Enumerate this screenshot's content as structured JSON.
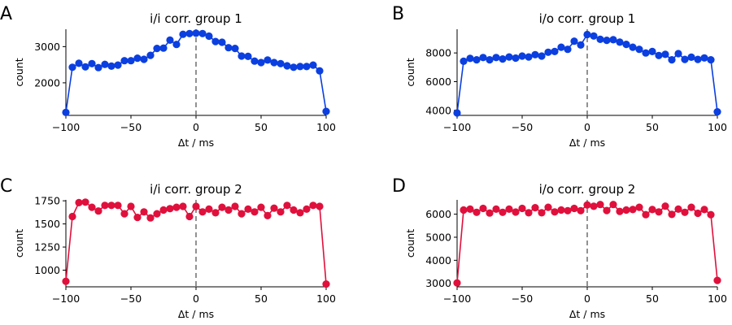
{
  "chart_data": [
    {
      "type": "line",
      "panel_letter": "A",
      "title": "i/i corr. group 1",
      "xlabel": "Δt / ms",
      "ylabel": "count",
      "color": "#0b3fe0",
      "xlim": [
        -100,
        100
      ],
      "ylim": [
        1100,
        3480
      ],
      "xticks": [
        -100,
        -50,
        0,
        50,
        100
      ],
      "yticks": [
        2000,
        3000
      ],
      "x": [
        -100,
        -95,
        -90,
        -85,
        -80,
        -75,
        -70,
        -65,
        -60,
        -55,
        -50,
        -45,
        -40,
        -35,
        -30,
        -25,
        -20,
        -15,
        -10,
        -5,
        0,
        5,
        10,
        15,
        20,
        25,
        30,
        35,
        40,
        45,
        50,
        55,
        60,
        65,
        70,
        75,
        80,
        85,
        90,
        95,
        100
      ],
      "values": [
        1180,
        2430,
        2540,
        2440,
        2530,
        2420,
        2510,
        2460,
        2490,
        2610,
        2610,
        2680,
        2650,
        2760,
        2950,
        2960,
        3180,
        3060,
        3340,
        3360,
        3370,
        3360,
        3290,
        3140,
        3120,
        2970,
        2950,
        2740,
        2730,
        2600,
        2560,
        2630,
        2560,
        2530,
        2470,
        2430,
        2450,
        2450,
        2490,
        2330,
        1210
      ]
    },
    {
      "type": "line",
      "panel_letter": "B",
      "title": "i/o corr. group 1",
      "xlabel": "Δt / ms",
      "ylabel": "count",
      "color": "#0b3fe0",
      "xlim": [
        -100,
        100
      ],
      "ylim": [
        3650,
        9650
      ],
      "xticks": [
        -100,
        -50,
        0,
        50,
        100
      ],
      "yticks": [
        4000,
        6000,
        8000
      ],
      "x": [
        -100,
        -95,
        -90,
        -85,
        -80,
        -75,
        -70,
        -65,
        -60,
        -55,
        -50,
        -45,
        -40,
        -35,
        -30,
        -25,
        -20,
        -15,
        -10,
        -5,
        0,
        5,
        10,
        15,
        20,
        25,
        30,
        35,
        40,
        45,
        50,
        55,
        60,
        65,
        70,
        75,
        80,
        85,
        90,
        95,
        100
      ],
      "values": [
        3820,
        7420,
        7620,
        7520,
        7680,
        7520,
        7680,
        7580,
        7720,
        7640,
        7780,
        7720,
        7880,
        7780,
        8050,
        8100,
        8400,
        8250,
        8820,
        8550,
        9280,
        9180,
        8950,
        8880,
        8920,
        8750,
        8600,
        8400,
        8250,
        8000,
        8100,
        7820,
        7900,
        7520,
        7950,
        7550,
        7700,
        7550,
        7650,
        7520,
        3900
      ]
    },
    {
      "type": "line",
      "panel_letter": "C",
      "title": "i/i corr. group 2",
      "xlabel": "Δt / ms",
      "ylabel": "count",
      "color": "#e0103c",
      "xlim": [
        -100,
        100
      ],
      "ylim": [
        820,
        1760
      ],
      "xticks": [
        -100,
        -50,
        0,
        50,
        100
      ],
      "yticks": [
        1000,
        1250,
        1500,
        1750
      ],
      "x": [
        -100,
        -95,
        -90,
        -85,
        -80,
        -75,
        -70,
        -65,
        -60,
        -55,
        -50,
        -45,
        -40,
        -35,
        -30,
        -25,
        -20,
        -15,
        -10,
        -5,
        0,
        5,
        10,
        15,
        20,
        25,
        30,
        35,
        40,
        45,
        50,
        55,
        60,
        65,
        70,
        75,
        80,
        85,
        90,
        95,
        100
      ],
      "values": [
        880,
        1580,
        1730,
        1735,
        1680,
        1640,
        1700,
        1700,
        1700,
        1610,
        1690,
        1570,
        1630,
        1565,
        1610,
        1650,
        1665,
        1680,
        1690,
        1580,
        1690,
        1630,
        1660,
        1620,
        1680,
        1650,
        1690,
        1610,
        1660,
        1630,
        1680,
        1590,
        1670,
        1630,
        1700,
        1650,
        1620,
        1660,
        1700,
        1690,
        850
      ]
    },
    {
      "type": "line",
      "panel_letter": "D",
      "title": "i/o corr. group 2",
      "xlabel": "Δt / ms",
      "ylabel": "count",
      "color": "#e0103c",
      "xlim": [
        -100,
        100
      ],
      "ylim": [
        2850,
        6620
      ],
      "xticks": [
        -100,
        -50,
        0,
        50,
        100
      ],
      "yticks": [
        3000,
        4000,
        5000,
        6000
      ],
      "x": [
        -100,
        -95,
        -90,
        -85,
        -80,
        -75,
        -70,
        -65,
        -60,
        -55,
        -50,
        -45,
        -40,
        -35,
        -30,
        -25,
        -20,
        -15,
        -10,
        -5,
        0,
        5,
        10,
        15,
        20,
        25,
        30,
        35,
        40,
        45,
        50,
        55,
        60,
        65,
        70,
        75,
        80,
        85,
        90,
        95,
        100
      ],
      "values": [
        3020,
        6180,
        6220,
        6080,
        6250,
        6050,
        6220,
        6080,
        6220,
        6090,
        6250,
        6060,
        6280,
        6060,
        6300,
        6100,
        6180,
        6150,
        6250,
        6150,
        6400,
        6340,
        6420,
        6160,
        6420,
        6120,
        6180,
        6200,
        6300,
        5980,
        6200,
        6100,
        6350,
        5990,
        6220,
        6080,
        6300,
        6040,
        6200,
        5980,
        3130
      ]
    }
  ]
}
